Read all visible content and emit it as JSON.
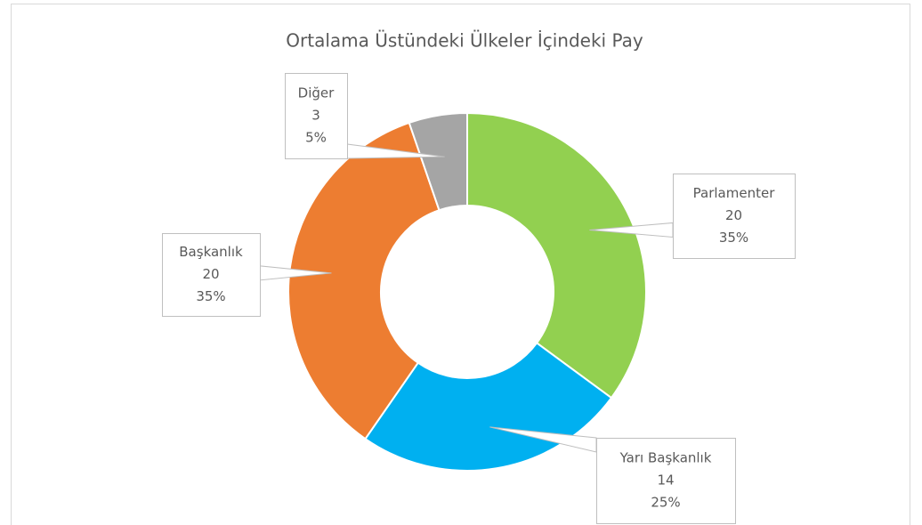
{
  "chart_data": {
    "type": "donut",
    "title": "Ortalama Üstündeki Ülkeler İçindeki Pay",
    "categories": [
      "Parlamenter",
      "Yarı Başkanlık",
      "Başkanlık",
      "Diğer"
    ],
    "values": [
      20,
      14,
      20,
      3
    ],
    "percent_labels": [
      "35%",
      "25%",
      "35%",
      "5%"
    ],
    "colors": [
      "#92d050",
      "#00b0f0",
      "#ed7d31",
      "#a5a5a5"
    ]
  }
}
